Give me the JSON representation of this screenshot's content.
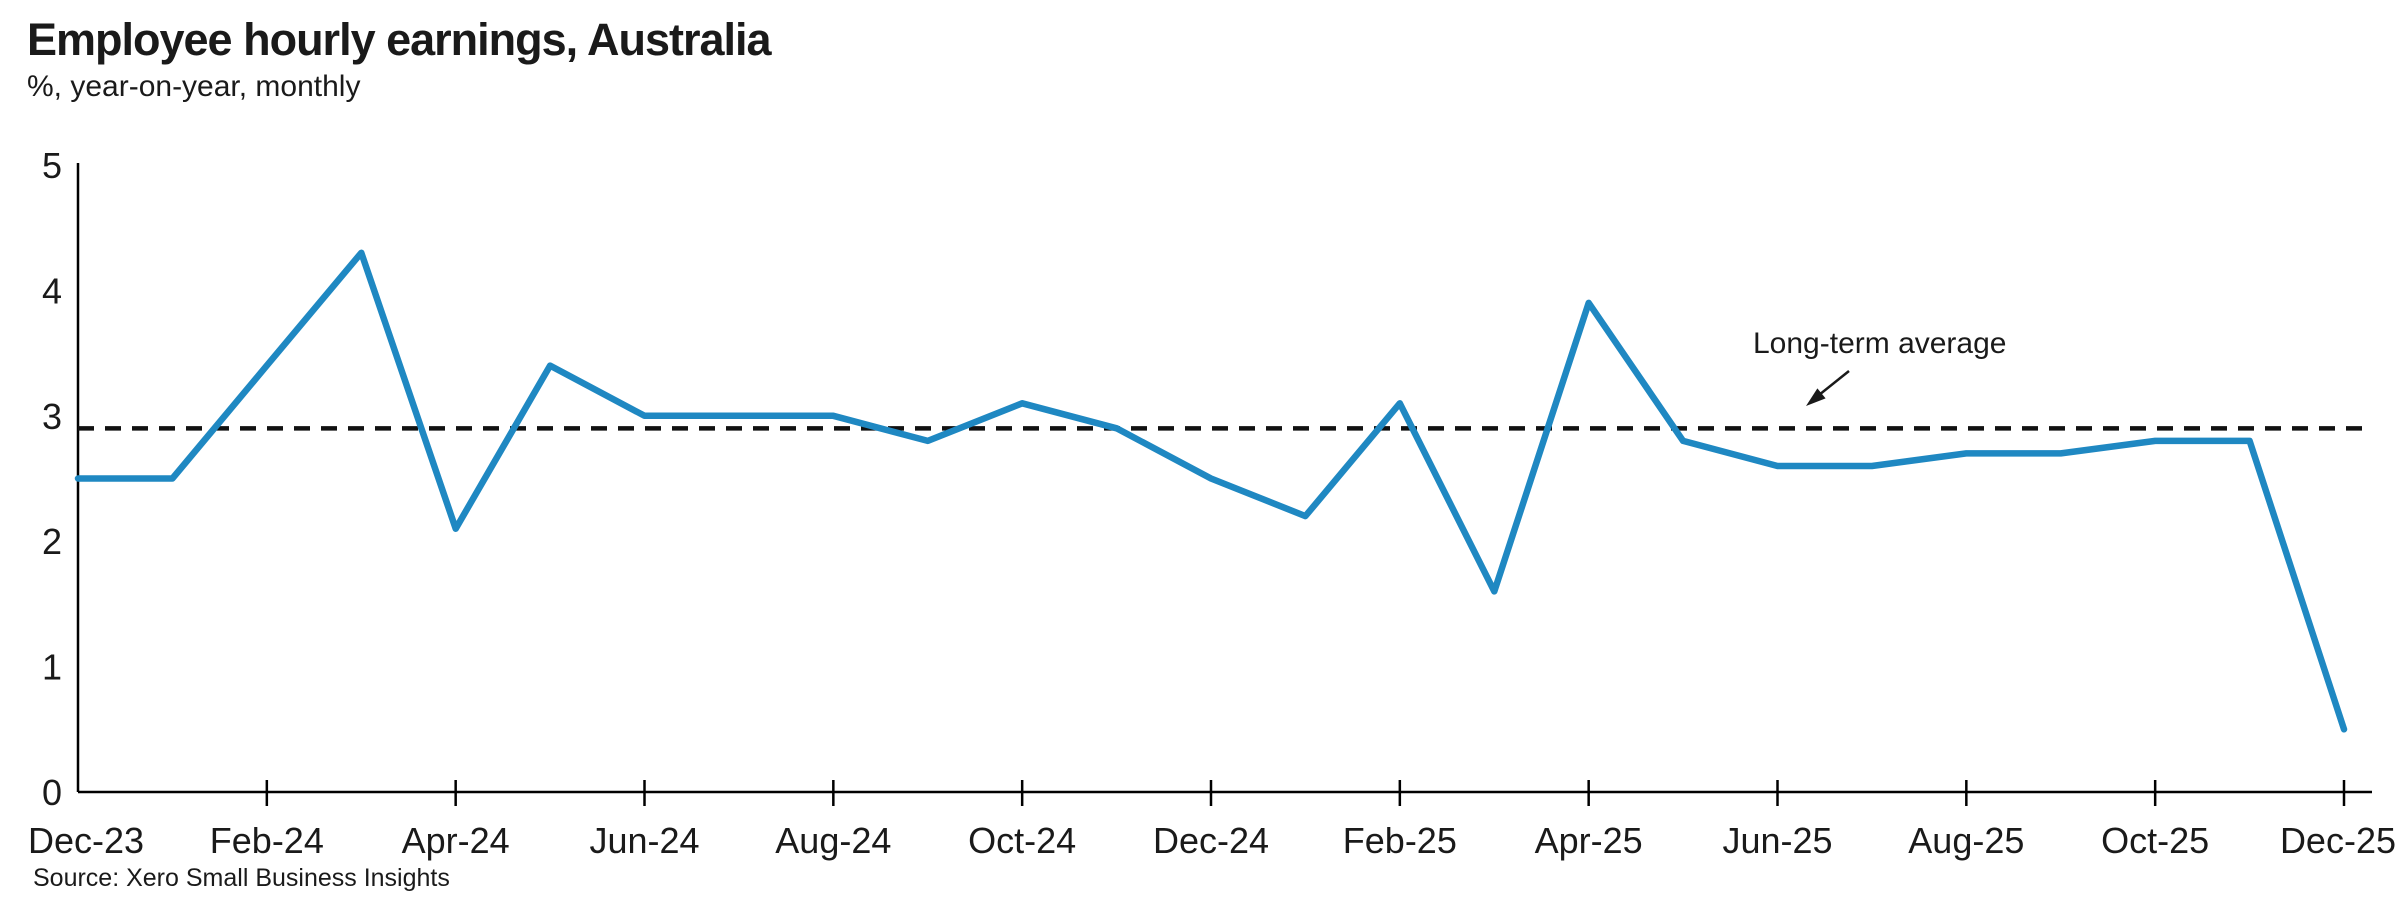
{
  "header": {
    "title": "Employee hourly earnings, Australia",
    "subtitle": "%, year-on-year, monthly"
  },
  "footer": {
    "source": "Source: Xero Small Business Insights"
  },
  "chart_data": {
    "type": "line",
    "title": "Employee hourly earnings, Australia",
    "subtitle": "%, year-on-year, monthly",
    "source": "Source: Xero Small Business Insights",
    "x": [
      "Dec-23",
      "Jan-24",
      "Feb-24",
      "Mar-24",
      "Apr-24",
      "May-24",
      "Jun-24",
      "Jul-24",
      "Aug-24",
      "Sep-24",
      "Oct-24",
      "Nov-24",
      "Dec-24",
      "Jan-25",
      "Feb-25",
      "Mar-25",
      "Apr-25",
      "May-25",
      "Jun-25",
      "Jul-25",
      "Aug-25",
      "Sep-25",
      "Oct-25",
      "Nov-25",
      "Dec-25"
    ],
    "series": [
      {
        "name": "Employee hourly earnings, year-on-year %",
        "color": "#1F88C2",
        "values": [
          2.5,
          2.5,
          3.4,
          4.3,
          2.1,
          3.4,
          3.0,
          3.0,
          3.0,
          2.8,
          3.1,
          2.9,
          2.5,
          2.2,
          3.1,
          1.6,
          3.9,
          2.8,
          2.6,
          2.6,
          2.7,
          2.7,
          2.8,
          2.8,
          0.5
        ]
      }
    ],
    "reference_line": {
      "label": "Long-term average",
      "value": 2.9,
      "style": "dashed",
      "color": "#111111"
    },
    "x_tick_labels": [
      "Dec-23",
      "Feb-24",
      "Apr-24",
      "Jun-24",
      "Aug-24",
      "Oct-24",
      "Dec-24",
      "Feb-25",
      "Apr-25",
      "Jun-25",
      "Aug-25",
      "Oct-25",
      "Dec-25"
    ],
    "y_ticks": [
      0,
      1,
      2,
      3,
      4,
      5
    ],
    "ylim": [
      0,
      5
    ],
    "grid": false,
    "legend": "none",
    "axis_color": "#000000",
    "text_color": "#1a1a1a"
  }
}
